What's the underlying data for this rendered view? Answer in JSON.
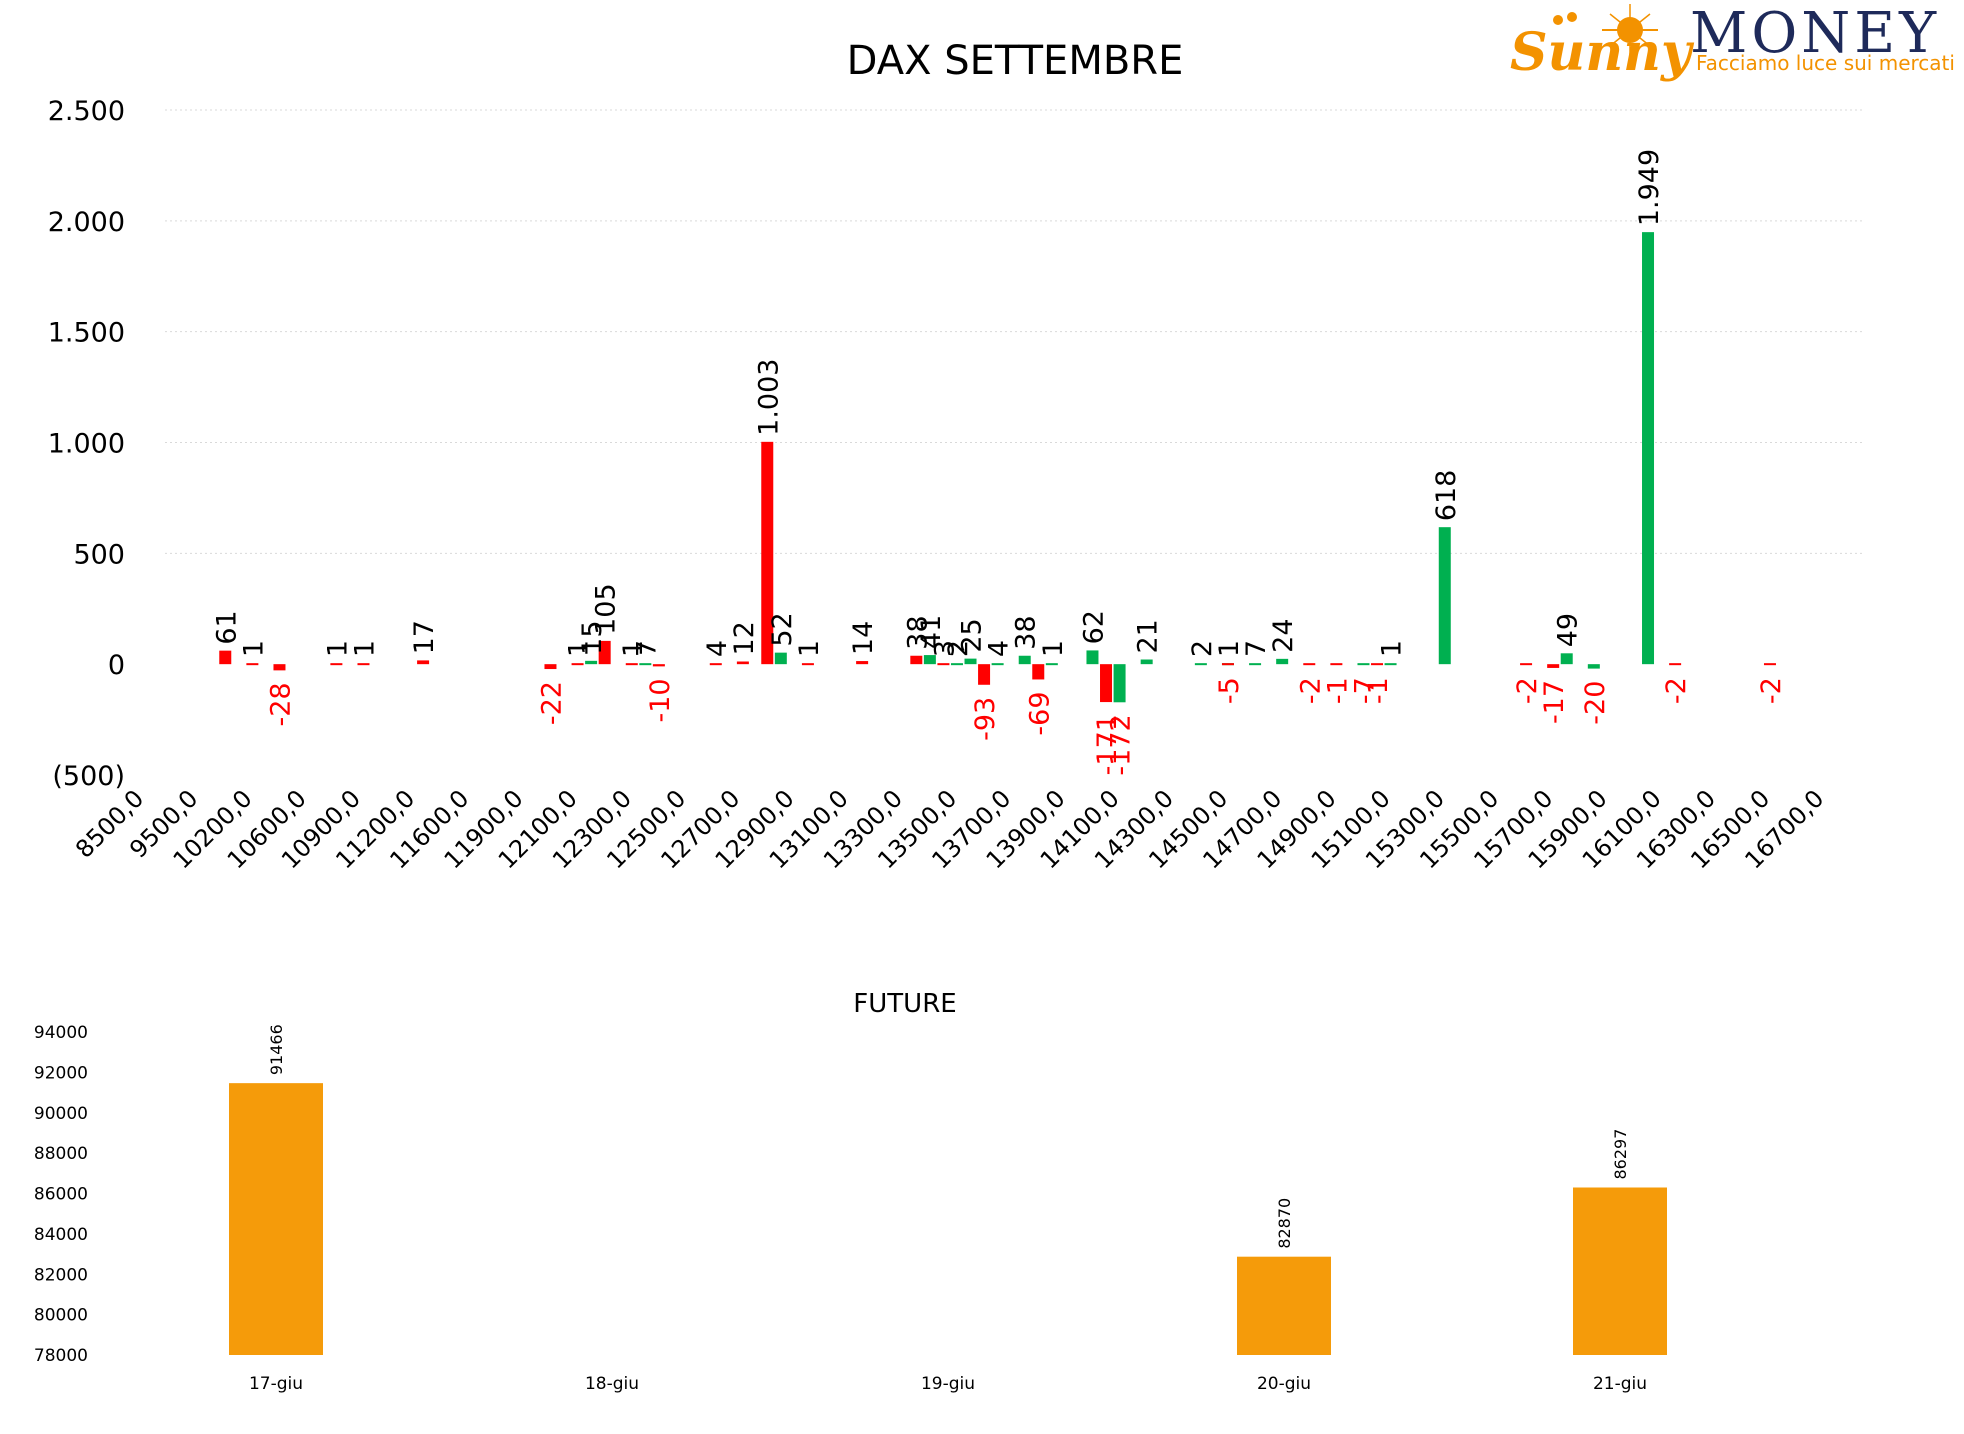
{
  "colors": {
    "positive": "#00b050",
    "negative": "#ff0000",
    "future_bar": "#f59b0a",
    "grid": "#d9d9d9",
    "negative_tick": "#ff0000"
  },
  "logo": {
    "brand_script": "Sunny",
    "brand_word": "MONEY",
    "tagline": "Facciamo luce sui mercati"
  },
  "chart_data": [
    {
      "type": "bar",
      "title": "DAX SETTEMBRE",
      "ylim": [
        -500,
        2500
      ],
      "y_ticks": [
        -500,
        0,
        500,
        1000,
        1500,
        2000,
        2500
      ],
      "y_tick_labels": [
        "(500)",
        "0",
        "500",
        "1.000",
        "1.500",
        "2.000",
        "2.500"
      ],
      "grid": true,
      "categories": [
        "8500,0",
        "9500,0",
        "10200,0",
        "10600,0",
        "10900,0",
        "11200,0",
        "11600,0",
        "11900,0",
        "12100,0",
        "12300,0",
        "12500,0",
        "12700,0",
        "12900,0",
        "13100,0",
        "13300,0",
        "13500,0",
        "13700,0",
        "13900,0",
        "14100,0",
        "14300,0",
        "14500,0",
        "14700,0",
        "14900,0",
        "15100,0",
        "15300,0",
        "15500,0",
        "15700,0",
        "15900,0",
        "16100,0",
        "16300,0",
        "16500,0",
        "16700,0"
      ],
      "bars": [
        {
          "pos": 1.85,
          "value": 61,
          "label": "61",
          "color": "negative"
        },
        {
          "pos": 2.35,
          "value": 1,
          "label": "1",
          "color": "negative"
        },
        {
          "pos": 2.85,
          "value": -28,
          "label": "-28",
          "color": "negative"
        },
        {
          "pos": 3.9,
          "value": 1,
          "label": "1",
          "color": "negative"
        },
        {
          "pos": 4.4,
          "value": 1,
          "label": "1",
          "color": "negative"
        },
        {
          "pos": 5.5,
          "value": 17,
          "label": "17",
          "color": "negative"
        },
        {
          "pos": 7.85,
          "value": -22,
          "label": "-22",
          "color": "negative"
        },
        {
          "pos": 8.35,
          "value": 1,
          "label": "1",
          "color": "negative"
        },
        {
          "pos": 8.6,
          "value": 15,
          "label": "15",
          "color": "positive"
        },
        {
          "pos": 8.85,
          "value": 105,
          "label": "105",
          "color": "negative"
        },
        {
          "pos": 9.35,
          "value": 1,
          "label": "1",
          "color": "negative"
        },
        {
          "pos": 9.6,
          "value": 7,
          "label": "7",
          "color": "positive"
        },
        {
          "pos": 9.85,
          "value": -10,
          "label": "-10",
          "color": "negative"
        },
        {
          "pos": 10.9,
          "value": 4,
          "label": "4",
          "color": "negative"
        },
        {
          "pos": 11.4,
          "value": 12,
          "label": "12",
          "color": "negative"
        },
        {
          "pos": 11.85,
          "value": 1003,
          "label": "1.003",
          "color": "negative"
        },
        {
          "pos": 12.1,
          "value": 52,
          "label": "52",
          "color": "positive"
        },
        {
          "pos": 12.6,
          "value": 1,
          "label": "1",
          "color": "negative"
        },
        {
          "pos": 13.6,
          "value": 14,
          "label": "14",
          "color": "negative"
        },
        {
          "pos": 14.6,
          "value": 38,
          "label": "38",
          "color": "negative"
        },
        {
          "pos": 14.85,
          "value": 41,
          "label": "41",
          "color": "positive"
        },
        {
          "pos": 15.1,
          "value": 3,
          "label": "3",
          "color": "negative"
        },
        {
          "pos": 15.35,
          "value": 2,
          "label": "2",
          "color": "positive"
        },
        {
          "pos": 15.6,
          "value": 25,
          "label": "25",
          "color": "positive"
        },
        {
          "pos": 15.85,
          "value": -93,
          "label": "-93",
          "color": "negative"
        },
        {
          "pos": 16.1,
          "value": 4,
          "label": "4",
          "color": "positive"
        },
        {
          "pos": 16.6,
          "value": 38,
          "label": "38",
          "color": "positive"
        },
        {
          "pos": 16.85,
          "value": -69,
          "label": "-69",
          "color": "negative"
        },
        {
          "pos": 17.1,
          "value": 1,
          "label": "1",
          "color": "positive"
        },
        {
          "pos": 17.85,
          "value": 62,
          "label": "62",
          "color": "positive"
        },
        {
          "pos": 18.1,
          "value": -171,
          "label": "-171",
          "color": "negative"
        },
        {
          "pos": 18.35,
          "value": -172,
          "label": "-172",
          "color": "positive"
        },
        {
          "pos": 18.85,
          "value": 21,
          "label": "21",
          "color": "positive"
        },
        {
          "pos": 19.85,
          "value": 2,
          "label": "2",
          "color": "positive"
        },
        {
          "pos": 20.35,
          "value": 1,
          "label": "1",
          "color": "positive"
        },
        {
          "pos": 20.35,
          "value": -5,
          "label": "-5",
          "color": "negative"
        },
        {
          "pos": 20.85,
          "value": 7,
          "label": "7",
          "color": "positive"
        },
        {
          "pos": 21.35,
          "value": 24,
          "label": "24",
          "color": "positive"
        },
        {
          "pos": 21.85,
          "value": -2,
          "label": "-2",
          "color": "negative"
        },
        {
          "pos": 22.35,
          "value": -1,
          "label": "-1",
          "color": "negative"
        },
        {
          "pos": 22.85,
          "value": -7,
          "label": "-7",
          "color": "positive"
        },
        {
          "pos": 23.1,
          "value": -1,
          "label": "-1",
          "color": "negative"
        },
        {
          "pos": 23.35,
          "value": 1,
          "label": "1",
          "color": "positive"
        },
        {
          "pos": 24.35,
          "value": 618,
          "label": "618",
          "color": "positive"
        },
        {
          "pos": 25.85,
          "value": -2,
          "label": "-2",
          "color": "negative"
        },
        {
          "pos": 26.35,
          "value": -17,
          "label": "-17",
          "color": "negative"
        },
        {
          "pos": 26.6,
          "value": 49,
          "label": "49",
          "color": "positive"
        },
        {
          "pos": 27.1,
          "value": -20,
          "label": "-20",
          "color": "positive"
        },
        {
          "pos": 28.1,
          "value": 1949,
          "label": "1.949",
          "color": "positive"
        },
        {
          "pos": 28.6,
          "value": -2,
          "label": "-2",
          "color": "negative"
        },
        {
          "pos": 30.35,
          "value": -2,
          "label": "-2",
          "color": "negative"
        }
      ]
    },
    {
      "type": "bar",
      "title": "FUTURE",
      "categories": [
        "17-giu",
        "18-giu",
        "19-giu",
        "20-giu",
        "21-giu"
      ],
      "values": [
        91466,
        null,
        null,
        82870,
        86297
      ],
      "ylim": [
        78000,
        94000
      ],
      "y_ticks": [
        78000,
        80000,
        82000,
        84000,
        86000,
        88000,
        90000,
        92000,
        94000
      ],
      "grid": false
    }
  ]
}
